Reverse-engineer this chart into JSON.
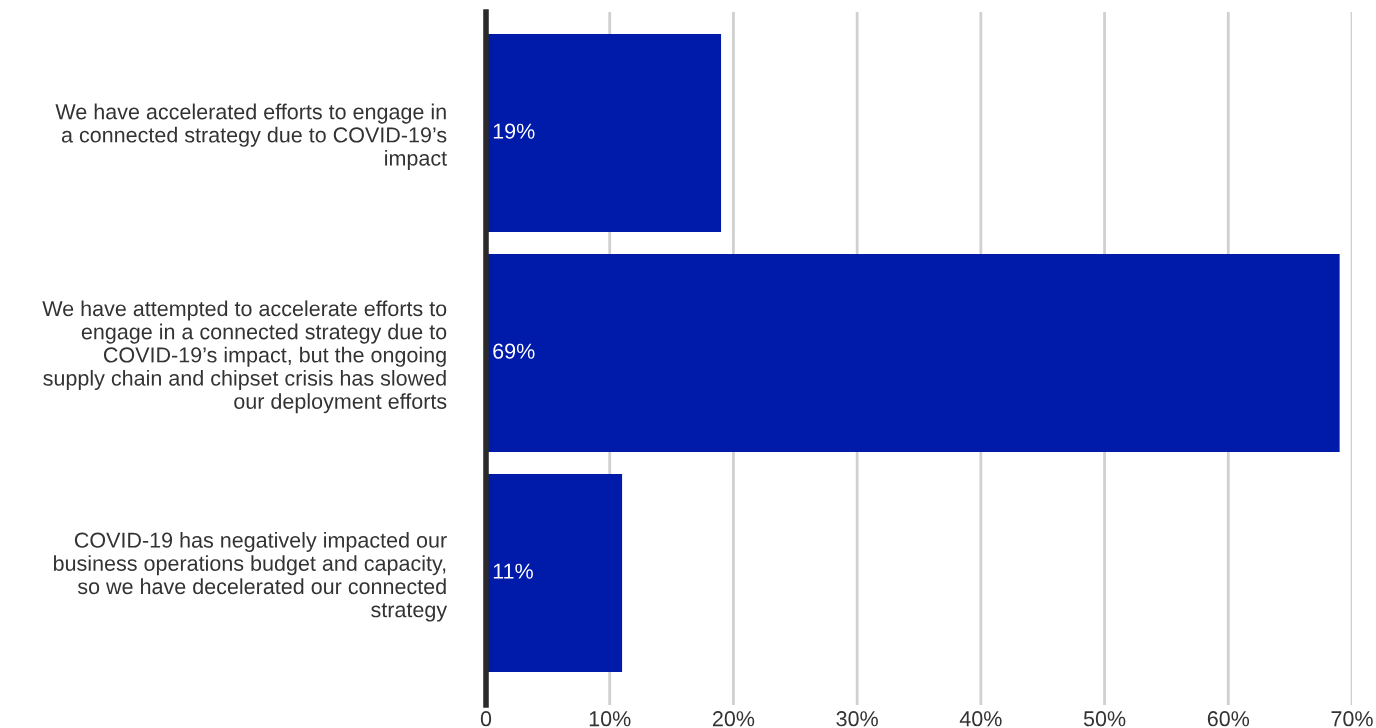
{
  "chart_data": {
    "type": "bar",
    "orientation": "horizontal",
    "categories": [
      "We have accelerated efforts to engage in\na connected strategy due to COVID-19’s\nimpact",
      "We have attempted to accelerate efforts to\nengage in a connected strategy due to\nCOVID-19’s impact, but the ongoing\nsupply chain and chipset crisis has slowed\nour deployment efforts",
      "COVID-19 has negatively impacted our\nbusiness operations budget and capacity,\nso we have decelerated our connected\nstrategy"
    ],
    "values": [
      19,
      69,
      11
    ],
    "color": "#001aaa",
    "value_labels": [
      "19%",
      "69%",
      "11%"
    ],
    "xlim": [
      0,
      70
    ],
    "xticks": [
      0,
      {
        "value": 10,
        "label": "10%"
      },
      {
        "value": 20,
        "label": "20%"
      },
      {
        "value": 30,
        "label": "30%"
      },
      {
        "value": 40,
        "label": "40%"
      },
      {
        "value": 50,
        "label": "50%"
      },
      {
        "value": 60,
        "label": "60%"
      },
      {
        "value": 70,
        "label": "70%"
      }
    ],
    "grid": "x"
  }
}
